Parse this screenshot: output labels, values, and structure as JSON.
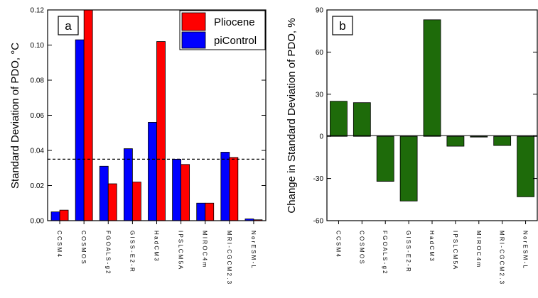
{
  "chart_data": [
    {
      "type": "bar",
      "panel_label": "a",
      "ylabel": "Standard Deviation of PDO, °C",
      "ylim": [
        0,
        0.12
      ],
      "yticks": [
        "0.00",
        "0.02",
        "0.04",
        "0.06",
        "0.08",
        "0.10",
        "0.12"
      ],
      "categories": [
        "CCSM4",
        "COSMOS",
        "FGOALS-g2",
        "GISS-E2-R",
        "HadCM3",
        "IPSLCM5A",
        "MIROC4m",
        "MRI-CGCM2.3",
        "NorESM-L"
      ],
      "categories_vertical": [
        "C C S M 4",
        "C O S M O S",
        "F G O A L S - g 2",
        "G I S S - E 2 - R",
        "H a d C M 3",
        "I P S L C M 5 A",
        "M I R O C 4 m",
        "M R I - C G C M 2 . 3",
        "N o r E S M - L"
      ],
      "series": [
        {
          "name": "piControl",
          "color": "#0000ff",
          "values": [
            0.005,
            0.103,
            0.031,
            0.041,
            0.056,
            0.035,
            0.01,
            0.039,
            0.001
          ]
        },
        {
          "name": "Pliocene",
          "color": "#ff0000",
          "values": [
            0.006,
            0.125,
            0.021,
            0.022,
            0.102,
            0.032,
            0.01,
            0.036,
            0.0005
          ]
        }
      ],
      "reference_line": 0.035,
      "legend": {
        "position": "top-right",
        "items": [
          "Pliocene",
          "piControl"
        ]
      },
      "grid": false
    },
    {
      "type": "bar",
      "panel_label": "b",
      "ylabel": "Change in Standard Deviation of PDO, %",
      "ylim": [
        -60,
        90
      ],
      "yticks": [
        "-60",
        "-30",
        "0",
        "30",
        "60",
        "90"
      ],
      "categories": [
        "CCSM4",
        "COSMOS",
        "FGOALS-g2",
        "GISS-E2-R",
        "HadCM3",
        "IPSLCM5A",
        "MIROC4m",
        "MRI-CGCM2.3",
        "NorESM-L"
      ],
      "categories_vertical": [
        "C C S M 4",
        "C O S M O S",
        "F G O A L S - g 2",
        "G I S S - E 2 - R",
        "H a d C M 3",
        "I P S L C M 5 A",
        "M I R O C 4 m",
        "M R I - C G C M 2 . 3",
        "N o r E S M - L"
      ],
      "series": [
        {
          "color": "#1e6b0a",
          "values": [
            25,
            24,
            -32,
            -46,
            83,
            -7,
            -0.5,
            -6.5,
            -43
          ]
        }
      ],
      "grid": false
    }
  ]
}
